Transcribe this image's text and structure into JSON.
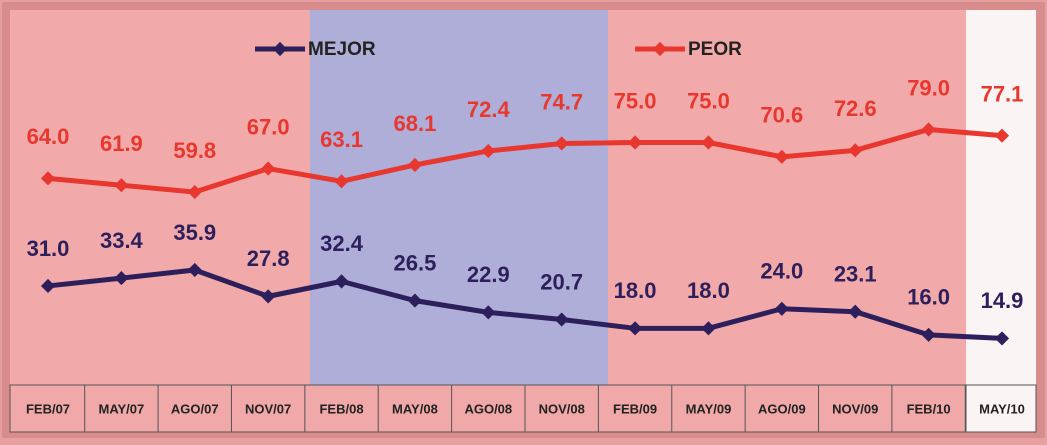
{
  "chart_data": {
    "type": "line",
    "categories": [
      "FEB/07",
      "MAY/07",
      "AGO/07",
      "NOV/07",
      "FEB/08",
      "MAY/08",
      "AGO/08",
      "NOV/08",
      "FEB/09",
      "MAY/09",
      "AGO/09",
      "NOV/09",
      "FEB/10",
      "MAY/10"
    ],
    "series": [
      {
        "name": "MEJOR",
        "color": "#2d1f5c",
        "values": [
          31.0,
          33.4,
          35.9,
          27.8,
          32.4,
          26.5,
          22.9,
          20.7,
          18.0,
          18.0,
          24.0,
          23.1,
          16.0,
          14.9
        ],
        "value_labels": [
          "31.0",
          "33.4",
          "35.9",
          "27.8",
          "32.4",
          "26.5",
          "22.9",
          "20.7",
          "18.0",
          "18.0",
          "24.0",
          "23.1",
          "16.0",
          "14.9"
        ]
      },
      {
        "name": "PEOR",
        "color": "#e8372e",
        "values": [
          64.0,
          61.9,
          59.8,
          67.0,
          63.1,
          68.1,
          72.4,
          74.7,
          75.0,
          75.0,
          70.6,
          72.6,
          79.0,
          77.1
        ],
        "value_labels": [
          "64.0",
          "61.9",
          "59.8",
          "67.0",
          "63.1",
          "68.1",
          "72.4",
          "74.7",
          "75.0",
          "75.0",
          "70.6",
          "72.6",
          "79.0",
          "77.1"
        ]
      }
    ]
  }
}
